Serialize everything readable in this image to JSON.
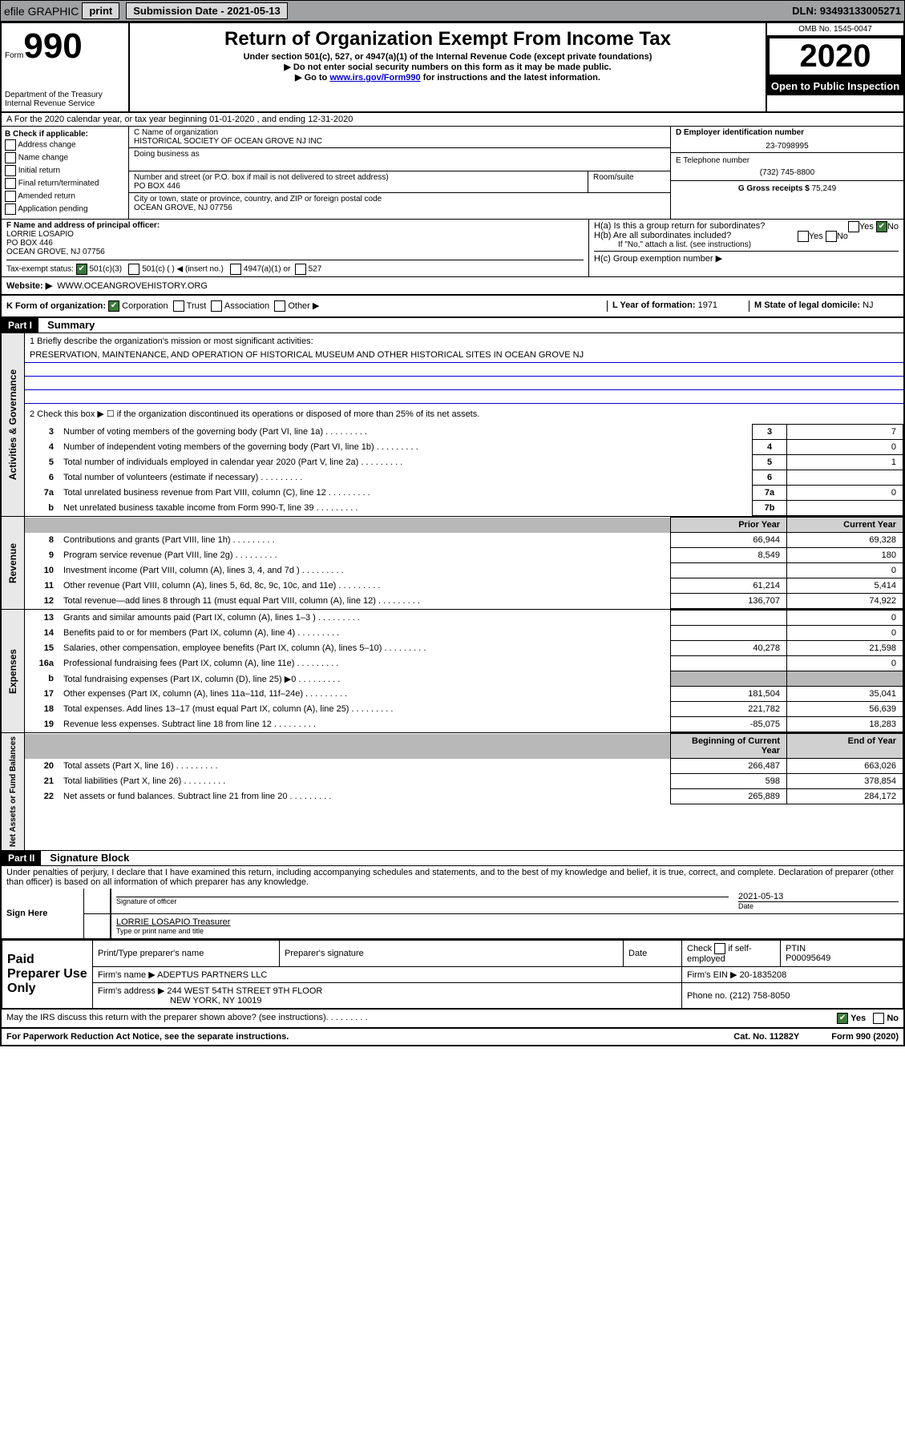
{
  "topbar": {
    "efile": "efile GRAPHIC",
    "print": "print",
    "submission": "Submission Date - 2021-05-13",
    "dln": "DLN: 93493133005271"
  },
  "header": {
    "form_prefix": "Form",
    "form_number": "990",
    "title": "Return of Organization Exempt From Income Tax",
    "subtitle1": "Under section 501(c), 527, or 4947(a)(1) of the Internal Revenue Code (except private foundations)",
    "subtitle2": "▶ Do not enter social security numbers on this form as it may be made public.",
    "subtitle3_pre": "▶ Go to ",
    "subtitle3_link": "www.irs.gov/Form990",
    "subtitle3_post": " for instructions and the latest information.",
    "omb": "OMB No. 1545-0047",
    "year": "2020",
    "open": "Open to Public Inspection",
    "dept": "Department of the Treasury Internal Revenue Service"
  },
  "line_a": "A For the 2020 calendar year, or tax year beginning 01-01-2020    , and ending 12-31-2020",
  "section_b": {
    "label": "B Check if applicable:",
    "items": [
      "Address change",
      "Name change",
      "Initial return",
      "Final return/terminated",
      "Amended return",
      "Application pending"
    ]
  },
  "section_c": {
    "label": "C Name of organization",
    "name": "HISTORICAL SOCIETY OF OCEAN GROVE NJ INC",
    "dba_label": "Doing business as",
    "addr_label": "Number and street (or P.O. box if mail is not delivered to street address)",
    "suite_label": "Room/suite",
    "addr": "PO BOX 446",
    "city_label": "City or town, state or province, country, and ZIP or foreign postal code",
    "city": "OCEAN GROVE, NJ  07756"
  },
  "section_d": {
    "label": "D Employer identification number",
    "value": "23-7098995"
  },
  "section_e": {
    "label": "E Telephone number",
    "value": "(732) 745-8800"
  },
  "section_g": {
    "label": "G Gross receipts $",
    "value": "75,249"
  },
  "section_f": {
    "label": "F  Name and address of principal officer:",
    "name": "LORRIE LOSAPIO",
    "addr1": "PO BOX 446",
    "addr2": "OCEAN GROVE, NJ  07756"
  },
  "section_h": {
    "ha_label": "H(a)  Is this a group return for subordinates?",
    "hb_label": "H(b)  Are all subordinates included?",
    "hb_note": "If \"No,\" attach a list. (see instructions)",
    "hc_label": "H(c)  Group exemption number ▶",
    "yes": "Yes",
    "no": "No"
  },
  "tax_status": {
    "label": "Tax-exempt status:",
    "opt1": "501(c)(3)",
    "opt2": "501(c) (  ) ◀ (insert no.)",
    "opt3": "4947(a)(1) or",
    "opt4": "527"
  },
  "website": {
    "label": "Website: ▶",
    "value": "WWW.OCEANGROVEHISTORY.ORG"
  },
  "section_k": {
    "label": "K Form of organization:",
    "opts": [
      "Corporation",
      "Trust",
      "Association",
      "Other ▶"
    ],
    "l_label": "L Year of formation:",
    "l_val": "1971",
    "m_label": "M State of legal domicile:",
    "m_val": "NJ"
  },
  "part1": {
    "header": "Part I",
    "title": "Summary"
  },
  "summary": {
    "q1_label": "1  Briefly describe the organization's mission or most significant activities:",
    "q1_text": "PRESERVATION, MAINTENANCE, AND OPERATION OF HISTORICAL MUSEUM AND OTHER HISTORICAL SITES IN OCEAN GROVE NJ",
    "q2": "2   Check this box ▶ ☐  if the organization discontinued its operations or disposed of more than 25% of its net assets.",
    "rows_top": [
      {
        "n": "3",
        "t": "Number of voting members of the governing body (Part VI, line 1a)",
        "box": "3",
        "v": "7"
      },
      {
        "n": "4",
        "t": "Number of independent voting members of the governing body (Part VI, line 1b)",
        "box": "4",
        "v": "0"
      },
      {
        "n": "5",
        "t": "Total number of individuals employed in calendar year 2020 (Part V, line 2a)",
        "box": "5",
        "v": "1"
      },
      {
        "n": "6",
        "t": "Total number of volunteers (estimate if necessary)",
        "box": "6",
        "v": ""
      },
      {
        "n": "7a",
        "t": "Total unrelated business revenue from Part VIII, column (C), line 12",
        "box": "7a",
        "v": "0"
      },
      {
        "n": "b",
        "t": "Net unrelated business taxable income from Form 990-T, line 39",
        "box": "7b",
        "v": ""
      }
    ],
    "col_headers": {
      "prior": "Prior Year",
      "current": "Current Year"
    },
    "revenue": [
      {
        "n": "8",
        "t": "Contributions and grants (Part VIII, line 1h)",
        "p": "66,944",
        "c": "69,328"
      },
      {
        "n": "9",
        "t": "Program service revenue (Part VIII, line 2g)",
        "p": "8,549",
        "c": "180"
      },
      {
        "n": "10",
        "t": "Investment income (Part VIII, column (A), lines 3, 4, and 7d )",
        "p": "",
        "c": "0"
      },
      {
        "n": "11",
        "t": "Other revenue (Part VIII, column (A), lines 5, 6d, 8c, 9c, 10c, and 11e)",
        "p": "61,214",
        "c": "5,414"
      },
      {
        "n": "12",
        "t": "Total revenue—add lines 8 through 11 (must equal Part VIII, column (A), line 12)",
        "p": "136,707",
        "c": "74,922"
      }
    ],
    "expenses": [
      {
        "n": "13",
        "t": "Grants and similar amounts paid (Part IX, column (A), lines 1–3 )",
        "p": "",
        "c": "0"
      },
      {
        "n": "14",
        "t": "Benefits paid to or for members (Part IX, column (A), line 4)",
        "p": "",
        "c": "0"
      },
      {
        "n": "15",
        "t": "Salaries, other compensation, employee benefits (Part IX, column (A), lines 5–10)",
        "p": "40,278",
        "c": "21,598"
      },
      {
        "n": "16a",
        "t": "Professional fundraising fees (Part IX, column (A), line 11e)",
        "p": "",
        "c": "0"
      },
      {
        "n": "b",
        "t": "Total fundraising expenses (Part IX, column (D), line 25) ▶0",
        "p": "GREY",
        "c": "GREY"
      },
      {
        "n": "17",
        "t": "Other expenses (Part IX, column (A), lines 11a–11d, 11f–24e)",
        "p": "181,504",
        "c": "35,041"
      },
      {
        "n": "18",
        "t": "Total expenses. Add lines 13–17 (must equal Part IX, column (A), line 25)",
        "p": "221,782",
        "c": "56,639"
      },
      {
        "n": "19",
        "t": "Revenue less expenses. Subtract line 18 from line 12",
        "p": "-85,075",
        "c": "18,283"
      }
    ],
    "net_headers": {
      "beg": "Beginning of Current Year",
      "end": "End of Year"
    },
    "net": [
      {
        "n": "20",
        "t": "Total assets (Part X, line 16)",
        "p": "266,487",
        "c": "663,026"
      },
      {
        "n": "21",
        "t": "Total liabilities (Part X, line 26)",
        "p": "598",
        "c": "378,854"
      },
      {
        "n": "22",
        "t": "Net assets or fund balances. Subtract line 21 from line 20",
        "p": "265,889",
        "c": "284,172"
      }
    ],
    "side_labels": {
      "ag": "Activities & Governance",
      "rev": "Revenue",
      "exp": "Expenses",
      "net": "Net Assets or Fund Balances"
    }
  },
  "part2": {
    "header": "Part II",
    "title": "Signature Block"
  },
  "sig": {
    "declaration": "Under penalties of perjury, I declare that I have examined this return, including accompanying schedules and statements, and to the best of my knowledge and belief, it is true, correct, and complete. Declaration of preparer (other than officer) is based on all information of which preparer has any knowledge.",
    "sign_here": "Sign Here",
    "sig_officer": "Signature of officer",
    "date": "2021-05-13",
    "date_label": "Date",
    "name_title": "LORRIE LOSAPIO  Treasurer",
    "name_label": "Type or print name and title"
  },
  "prep": {
    "label": "Paid Preparer Use Only",
    "h1": "Print/Type preparer's name",
    "h2": "Preparer's signature",
    "h3": "Date",
    "h4_pre": "Check",
    "h4_post": "if self-employed",
    "h5": "PTIN",
    "ptin": "P00095649",
    "firm_name_label": "Firm's name    ▶",
    "firm_name": "ADEPTUS PARTNERS LLC",
    "firm_ein_label": "Firm's EIN ▶",
    "firm_ein": "20-1835208",
    "firm_addr_label": "Firm's address ▶",
    "firm_addr1": "244 WEST 54TH STREET 9TH FLOOR",
    "firm_addr2": "NEW YORK, NY  10019",
    "phone_label": "Phone no.",
    "phone": "(212) 758-8050"
  },
  "footer": {
    "discuss": "May the IRS discuss this return with the preparer shown above? (see instructions)",
    "yes": "Yes",
    "no": "No",
    "paperwork": "For Paperwork Reduction Act Notice, see the separate instructions.",
    "cat": "Cat. No. 11282Y",
    "form": "Form 990 (2020)"
  }
}
